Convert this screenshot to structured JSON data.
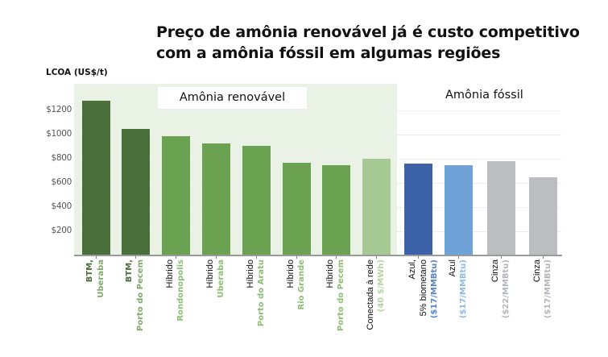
{
  "title": {
    "line1": "Preço de amônia renovável já é custo competitivo",
    "line2": "com a amônia fóssil em algumas regiões"
  },
  "y_axis_label": "LCOA (US$/t)",
  "sections": {
    "renewable": "Amônia renovável",
    "fossil": "Amônia fóssil"
  },
  "y_ticks": [
    "$1200",
    "$1000",
    "$800",
    "$600",
    "$400",
    "$200"
  ],
  "colors": {
    "btm": "#4b6f3a",
    "hybrid": "#6aa251",
    "grid_connected": "#a6c994",
    "blue_biomethane": "#3c63aa",
    "blue": "#6fa3d8",
    "grey": "#bcbdc0",
    "renewable_bg": "#eaf2e6"
  },
  "bars": [
    {
      "l1": "BTM,",
      "l2": "Uberaba",
      "l1_style": "bold-green",
      "l2_color": "#7faa6a"
    },
    {
      "l1": "BTM,",
      "l2": "Porto do Pecem",
      "l1_style": "bold-green",
      "l2_color": "#7faa6a"
    },
    {
      "l1": "Híbrido",
      "l2": "Rondonopolis",
      "l2_color": "#8cbf74"
    },
    {
      "l1": "Híbrido",
      "l2": "Uberaba",
      "l2_color": "#8cbf74"
    },
    {
      "l1": "Híbrido",
      "l2": "Porto do Aratu",
      "l2_color": "#8cbf74"
    },
    {
      "l1": "Híbrido",
      "l2": "Rio Grande",
      "l2_color": "#8cbf74"
    },
    {
      "l1": "Híbrido",
      "l2": "Porto do Pecem",
      "l2_color": "#8cbf74"
    },
    {
      "l1": "Conectada à rede",
      "l2": "(40 $/MWh)",
      "l2_color": "#b5d5a4"
    },
    {
      "l1": "Azul,",
      "l1b": "5% biometano",
      "l2": "($17/MMBtu)",
      "l2_color": "#5a86c8"
    },
    {
      "l1": "Azul",
      "l2": "($17/MMBtu)",
      "l2_color": "#8fbbe6"
    },
    {
      "l1": "Cinza",
      "l2": "($22/MMBtu)",
      "l2_color": "#b5b6b9"
    },
    {
      "l1": "Cinza",
      "l2": "($17/MMBtu)",
      "l2_color": "#b5b6b9"
    }
  ],
  "chart_data": {
    "type": "bar",
    "title": "Preço de amônia renovável já é custo competitivo com a amônia fóssil em algumas regiões",
    "xlabel": "",
    "ylabel": "LCOA (US$/t)",
    "ylim": [
      0,
      1400
    ],
    "y_ticks": [
      200,
      400,
      600,
      800,
      1000,
      1200
    ],
    "grid": true,
    "groups": [
      {
        "name": "Amônia renovável",
        "categories": [
          0,
          1,
          2,
          3,
          4,
          5,
          6,
          7
        ]
      },
      {
        "name": "Amônia fóssil",
        "categories": [
          8,
          9,
          10,
          11
        ]
      }
    ],
    "categories": [
      "BTM, Uberaba",
      "BTM, Porto do Pecem",
      "Híbrido Rondonopolis",
      "Híbrido Uberaba",
      "Híbrido Porto do Aratu",
      "Híbrido Rio Grande",
      "Híbrido Porto do Pecem",
      "Conectada à rede (40 $/MWh)",
      "Azul, 5% biometano ($17/MMBtu)",
      "Azul ($17/MMBtu)",
      "Cinza ($22/MMBtu)",
      "Cinza ($17/MMBtu)"
    ],
    "values": [
      1280,
      1045,
      990,
      925,
      905,
      765,
      745,
      800,
      760,
      750,
      780,
      645
    ]
  }
}
